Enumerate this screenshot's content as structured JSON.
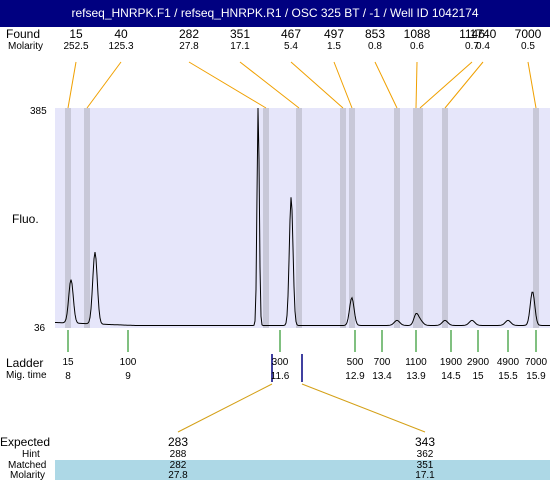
{
  "title": "refseq_HNRPK.F1 / refseq_HNRPK.R1 / OSC 325 BT / -1 / Well ID 1042174",
  "colors": {
    "title_bg": "#000080",
    "plot_bg": "#e6e6fa",
    "band": "#c8c8d8",
    "trace": "#000000",
    "found_leader": "#f0a000",
    "ladder_tick": "#008000",
    "expected_leader": "#d4a017",
    "matched_bg": "#add8e6",
    "marker": "#000080"
  },
  "labels": {
    "found": "Found",
    "molarity": "Molarity",
    "fluo": "Fluo.",
    "ladder": "Ladder",
    "mig_time": "Mig. time",
    "expected": "Expected",
    "hint": "Hint",
    "matched": "Matched",
    "molarity2": "Molarity"
  },
  "chart_data": {
    "type": "line",
    "ylabel": "Fluo.",
    "y_range": [
      36,
      385
    ],
    "y_ticks": [
      "385",
      "36"
    ],
    "found_peaks": [
      {
        "size": "15",
        "molarity": "252.5"
      },
      {
        "size": "40",
        "molarity": "125.3"
      },
      {
        "size": "282",
        "molarity": "27.8"
      },
      {
        "size": "351",
        "molarity": "17.1"
      },
      {
        "size": "467",
        "molarity": "5.4"
      },
      {
        "size": "497",
        "molarity": "1.5"
      },
      {
        "size": "853",
        "molarity": "0.8"
      },
      {
        "size": "1088",
        "molarity": "0.6"
      },
      {
        "size": "1146",
        "molarity": "0.7"
      },
      {
        "size": "1740",
        "molarity": "0.4"
      },
      {
        "size": "7000",
        "molarity": "0.5"
      }
    ],
    "ladder": [
      {
        "size": "15",
        "time": "8"
      },
      {
        "size": "100",
        "time": "9"
      },
      {
        "size": "300",
        "time": "11.6"
      },
      {
        "size": "500",
        "time": "12.9"
      },
      {
        "size": "700",
        "time": "13.4"
      },
      {
        "size": "1100",
        "time": "13.9"
      },
      {
        "size": "1900",
        "time": "14.5"
      },
      {
        "size": "2900",
        "time": "15"
      },
      {
        "size": "4900",
        "time": "15.5"
      },
      {
        "size": "7000",
        "time": "15.9"
      }
    ],
    "expected": [
      {
        "expected": "283",
        "hint": "288",
        "matched": "282",
        "molarity": "27.8"
      },
      {
        "expected": "343",
        "hint": "362",
        "matched": "351",
        "molarity": "17.1"
      }
    ],
    "trace_peaks": [
      {
        "time": 8.05,
        "height": 105
      },
      {
        "time": 8.45,
        "height": 150
      },
      {
        "time": 11.35,
        "height": 385
      },
      {
        "time": 11.9,
        "height": 240
      },
      {
        "time": 12.85,
        "height": 80
      },
      {
        "time": 13.9,
        "height": 52
      },
      {
        "time": 15.85,
        "height": 90
      }
    ]
  }
}
